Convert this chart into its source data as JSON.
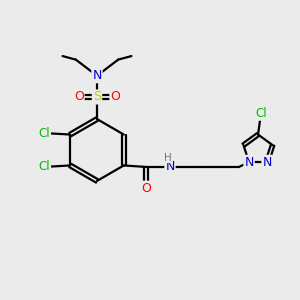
{
  "background_color": "#ebebeb",
  "bond_color": "#000000",
  "colors": {
    "C": "#000000",
    "N": "#0000cc",
    "O": "#ff0000",
    "S": "#cccc00",
    "Cl": "#00bb00",
    "H": "#777777"
  },
  "figsize": [
    3.0,
    3.0
  ],
  "dpi": 100
}
